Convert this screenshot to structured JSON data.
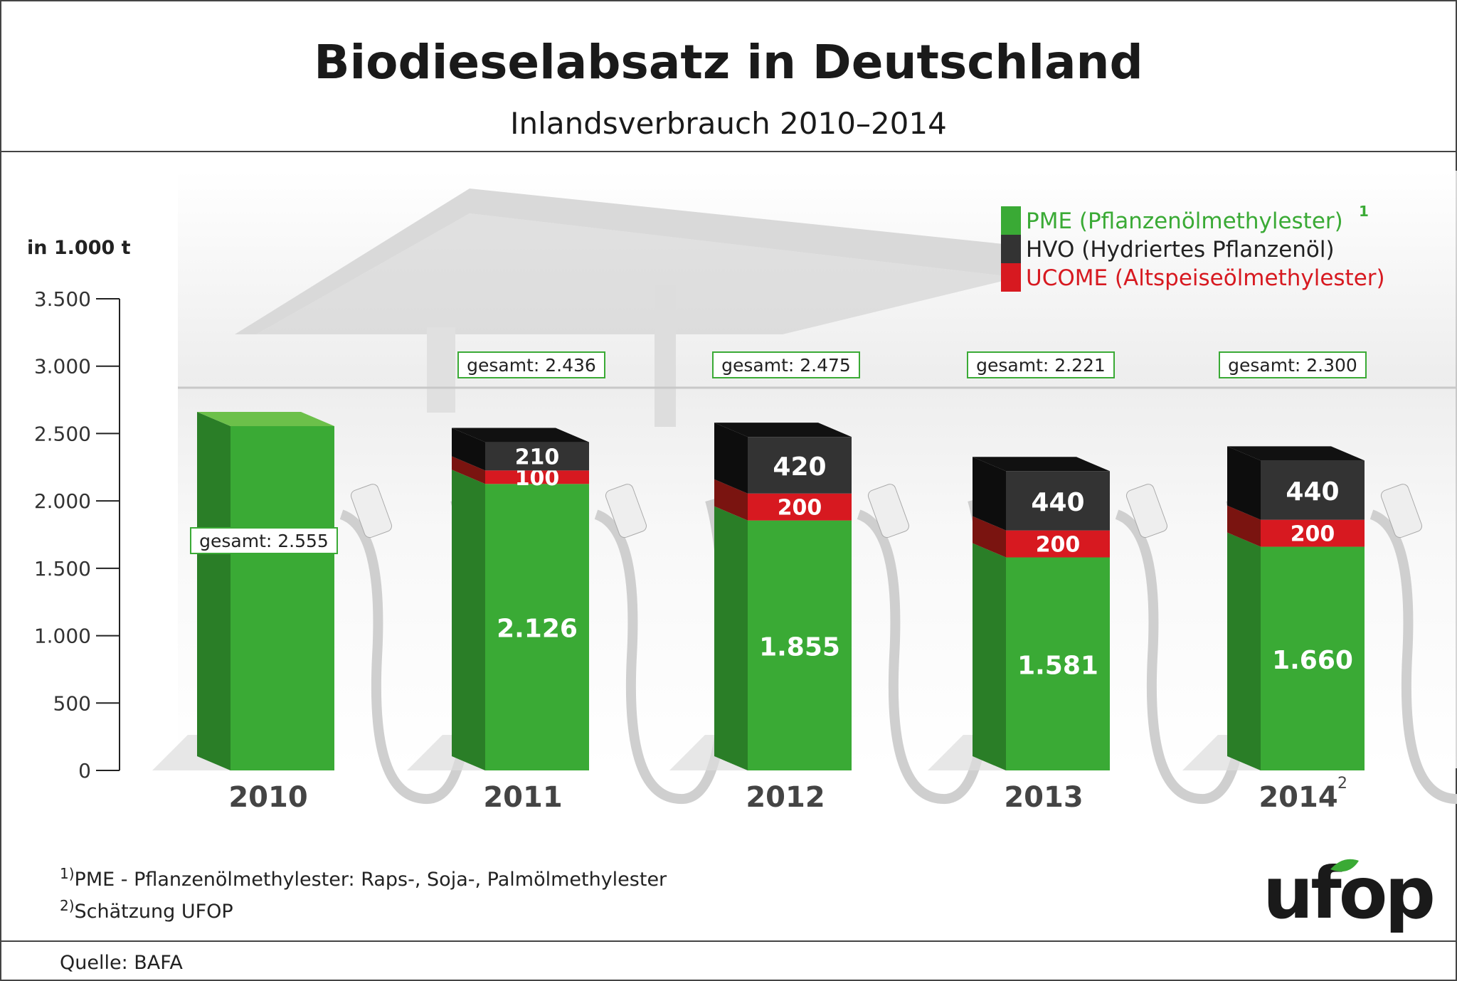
{
  "title": "Biodieselabsatz in Deutschland",
  "subtitle": "Inlandsverbrauch 2010–2014",
  "chart_data": {
    "type": "bar",
    "stacked": true,
    "ylabel": "in 1.000 t",
    "ylim": [
      0,
      3500
    ],
    "yticks": [
      0,
      500,
      1000,
      1500,
      2000,
      2500,
      3000,
      3500
    ],
    "ytick_labels": [
      "0",
      "500",
      "1.000",
      "1.500",
      "2.000",
      "2.500",
      "3.000",
      "3.500"
    ],
    "categories": [
      "2010",
      "2011",
      "2012",
      "2013",
      "2014"
    ],
    "category_superscripts": [
      "",
      "",
      "",
      "",
      "2"
    ],
    "series": [
      {
        "name": "PME (Pflanzenölmethylester)",
        "superscript": "1",
        "color": "#3aaa35",
        "values": [
          2555,
          2126,
          1855,
          1581,
          1660
        ],
        "labels": [
          "",
          "2.126",
          "1.855",
          "1.581",
          "1.660"
        ]
      },
      {
        "name": "UCOME (Altspeiseölmethylester)",
        "color": "#d71920",
        "values": [
          0,
          100,
          200,
          200,
          200
        ],
        "labels": [
          "",
          "100",
          "200",
          "200",
          "200"
        ]
      },
      {
        "name": "HVO (Hydriertes Pflanzenöl)",
        "color": "#333333",
        "values": [
          0,
          210,
          420,
          440,
          440
        ],
        "labels": [
          "",
          "210",
          "420",
          "440",
          "440"
        ]
      }
    ],
    "totals_labels": [
      "gesamt: 2.555",
      "gesamt: 2.436",
      "gesamt: 2.475",
      "gesamt: 2.221",
      "gesamt: 2.300"
    ],
    "legend": {
      "placement": "top-right",
      "order": [
        "PME (Pflanzenölmethylester)",
        "HVO (Hydriertes Pflanzenöl)",
        "UCOME (Altspeiseölmethylester)"
      ]
    },
    "grid": false
  },
  "footnotes": [
    {
      "mark": "1)",
      "text": "PME - Pflanzenölmethylester: Raps-, Soja-, Palmölmethylester"
    },
    {
      "mark": "2)",
      "text": "Schätzung UFOP"
    }
  ],
  "source": "Quelle: BAFA",
  "logo": "ufop"
}
